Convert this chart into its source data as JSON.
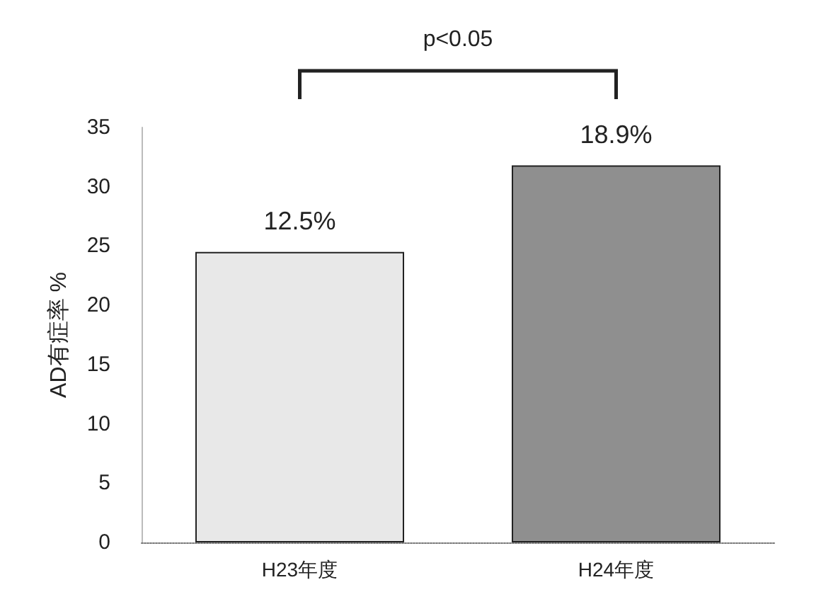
{
  "chart_data": {
    "type": "bar",
    "ylabel": "AD有症率 %",
    "categories": [
      "H23年度",
      "H24年度"
    ],
    "values": [
      24.5,
      31.8
    ],
    "colors": [
      "#e8e8e8",
      "#8f8f8f"
    ],
    "ylim": [
      0,
      35
    ],
    "yticks": [
      0,
      5,
      10,
      15,
      20,
      25,
      30,
      35
    ],
    "grid": false,
    "annotations": [
      "p<0.05",
      {
        "text": "12.5%",
        "x": "H23年度",
        "y": 24.5
      },
      {
        "text": "18.9%",
        "x": "H24年度",
        "y": 31.8
      }
    ]
  }
}
